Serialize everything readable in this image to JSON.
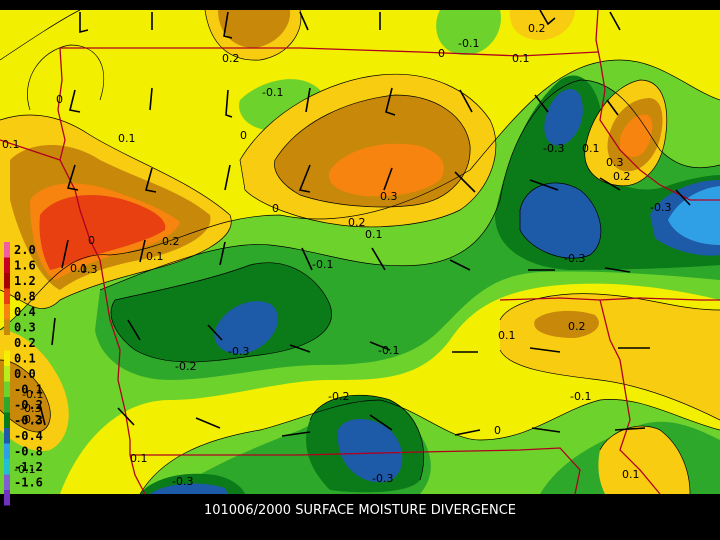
{
  "caption": "101006/2000 SURFACE MOISTURE DIVERGENCE",
  "palette": {
    "d2": "#2fa0e6",
    "d3": "#1d5aa8",
    "d4": "#0b7a18",
    "d5": "#2ea82a",
    "d6": "#6ed22c",
    "d7": "#b8ee1c",
    "d8": "#f3ef00",
    "d9": "#f8cc10",
    "d10": "#c8880a",
    "d11": "#f88410",
    "d12": "#e84010",
    "border": "#b00020"
  },
  "legend": [
    {
      "label": "2.0",
      "color": "#f060a0"
    },
    {
      "label": "1.6",
      "color": "#c80020"
    },
    {
      "label": "1.2",
      "color": "#a80000"
    },
    {
      "label": "0.8",
      "color": "#e84010"
    },
    {
      "label": "0.4",
      "color": "#f88410"
    },
    {
      "label": "0.3",
      "color": "#c8880a"
    },
    {
      "label": "0.2",
      "color": "#f8cc10"
    },
    {
      "label": "0.1",
      "color": "#f3ef00"
    },
    {
      "label": "0.0",
      "color": "#b8ee1c"
    },
    {
      "label": "-0.1",
      "color": "#6ed22c"
    },
    {
      "label": "-0.2",
      "color": "#2ea82a"
    },
    {
      "label": "-0.3",
      "color": "#0b7a18"
    },
    {
      "label": "-0.4",
      "color": "#1d5aa8"
    },
    {
      "label": "-0.8",
      "color": "#2fa0e6"
    },
    {
      "label": "-1.2",
      "color": "#20c0d0"
    },
    {
      "label": "-1.6",
      "color": "#8060d0"
    },
    {
      "label": "",
      "color": "#7030c0"
    }
  ],
  "contour_labels": [
    {
      "text": "0.2",
      "key": "a"
    },
    {
      "text": "-0.1",
      "key": "b"
    },
    {
      "text": "0",
      "key": "c"
    },
    {
      "text": "0.1",
      "key": "d"
    },
    {
      "text": "0.2",
      "key": "e"
    },
    {
      "text": "0.1",
      "key": "f"
    },
    {
      "text": "-0.1",
      "key": "g"
    },
    {
      "text": "0",
      "key": "h"
    },
    {
      "text": "0.1",
      "key": "i"
    },
    {
      "text": "0",
      "key": "j"
    },
    {
      "text": "-0.3",
      "key": "k"
    },
    {
      "text": "0.1",
      "key": "l"
    },
    {
      "text": "0.3",
      "key": "m"
    },
    {
      "text": "0.2",
      "key": "n"
    },
    {
      "text": "0.3",
      "key": "o"
    },
    {
      "text": "0.2",
      "key": "p"
    },
    {
      "text": "0.1",
      "key": "q"
    },
    {
      "text": "0.3",
      "key": "r"
    },
    {
      "text": "0.1",
      "key": "s"
    },
    {
      "text": "0",
      "key": "t"
    },
    {
      "text": "0.2",
      "key": "u"
    },
    {
      "text": "0.1",
      "key": "v"
    },
    {
      "text": "-0.3",
      "key": "w"
    },
    {
      "text": "-0.1",
      "key": "x"
    },
    {
      "text": "-0.2",
      "key": "y"
    },
    {
      "text": "-0.3",
      "key": "z"
    },
    {
      "text": "-0.1",
      "key": "aa"
    },
    {
      "text": "0.1",
      "key": "ab"
    },
    {
      "text": "0.2",
      "key": "ac"
    },
    {
      "text": "-0.3",
      "key": "ad"
    },
    {
      "text": "-0.1",
      "key": "ae"
    },
    {
      "text": "0",
      "key": "af"
    },
    {
      "text": "-0.2",
      "key": "ag"
    },
    {
      "text": "-0.3",
      "key": "ah"
    },
    {
      "text": "-0.3",
      "key": "ai"
    },
    {
      "text": "0.1",
      "key": "aj"
    },
    {
      "text": "-0.3",
      "key": "ak"
    },
    {
      "text": "-0.2",
      "key": "al"
    },
    {
      "text": "-0.1",
      "key": "am"
    },
    {
      "text": "0.1",
      "key": "an"
    },
    {
      "text": "-0.1",
      "key": "ao"
    },
    {
      "text": "0",
      "key": "ap"
    }
  ]
}
